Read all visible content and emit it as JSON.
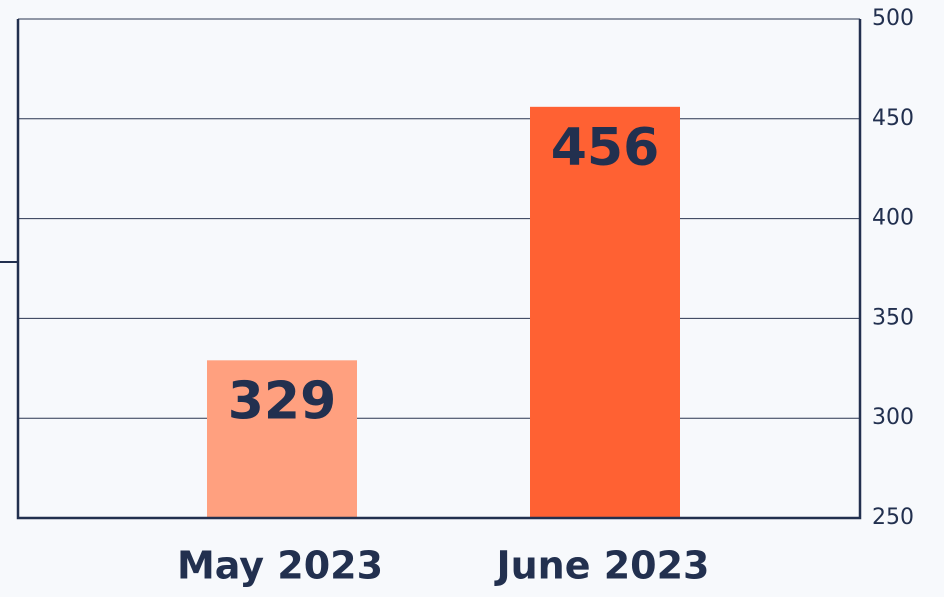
{
  "chart_data": {
    "type": "bar",
    "categories": [
      "May 2023",
      "June 2023"
    ],
    "values": [
      329,
      456
    ],
    "colors": [
      "#ffa07f",
      "#ff6133"
    ],
    "ylim": [
      250,
      500
    ],
    "yticks": [
      250,
      300,
      350,
      400,
      450,
      500
    ],
    "grid": true,
    "y_axis_side": "right"
  }
}
